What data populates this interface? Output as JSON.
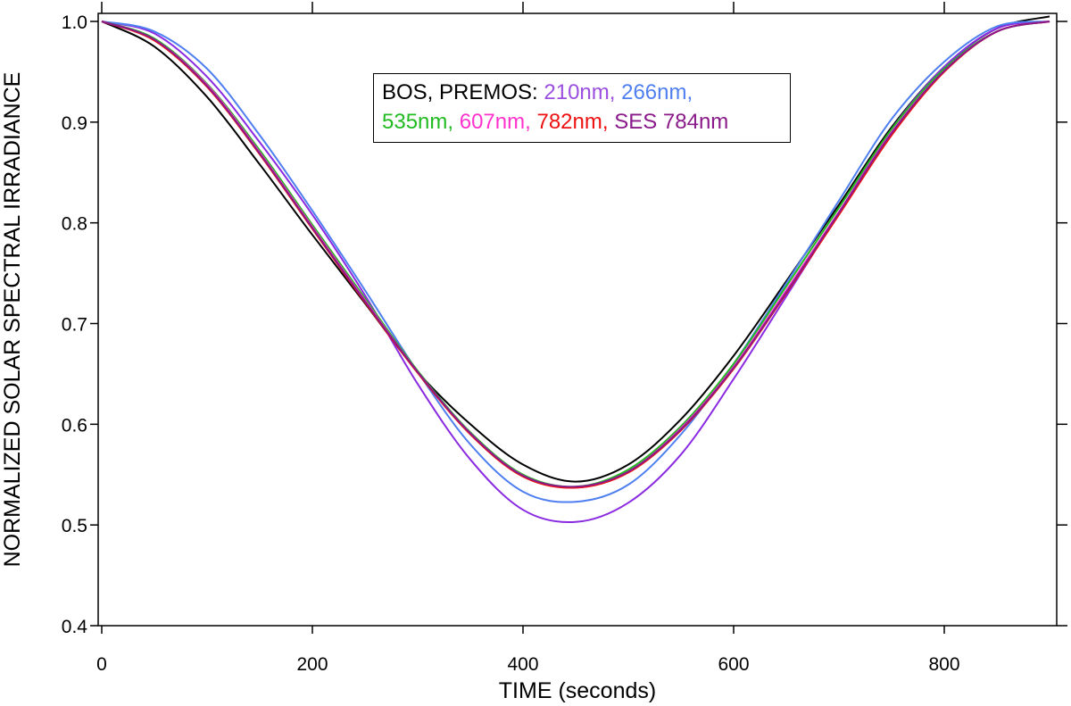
{
  "chart_data": {
    "type": "line",
    "title": "",
    "xlabel": "TIME (seconds)",
    "ylabel": "NORMALIZED SOLAR SPECTRAL IRRADIANCE",
    "xlim": [
      0,
      900
    ],
    "ylim": [
      0.4,
      1.0
    ],
    "xticks": [
      0,
      200,
      400,
      600,
      800
    ],
    "yticks": [
      0.4,
      0.5,
      0.6,
      0.7,
      0.8,
      0.9,
      1.0
    ],
    "xtick_labels": [
      "0",
      "200",
      "400",
      "600",
      "800"
    ],
    "ytick_labels": [
      "0.4",
      "0.5",
      "0.6",
      "0.7",
      "0.8",
      "0.9",
      "1.0"
    ],
    "grid": false,
    "legend_position": "top-center",
    "legend": {
      "prefix": "BOS, PREMOS:",
      "entries": [
        {
          "label": "210nm,",
          "color": "#9b4fe0"
        },
        {
          "label": "266nm,",
          "color": "#4f7ff0"
        },
        {
          "label": "535nm,",
          "color": "#22bb22"
        },
        {
          "label": "607nm,",
          "color": "#ff33cc"
        },
        {
          "label": "782nm,",
          "color": "#ee1111"
        },
        {
          "label": "SES 784nm",
          "color": "#8a1a8a"
        }
      ]
    },
    "x": [
      0,
      50,
      100,
      150,
      200,
      250,
      300,
      350,
      400,
      450,
      500,
      550,
      600,
      650,
      700,
      750,
      800,
      850,
      900
    ],
    "series": [
      {
        "name": "BOS",
        "color": "#000000",
        "values": [
          1.0,
          0.975,
          0.925,
          0.858,
          0.788,
          0.72,
          0.652,
          0.6,
          0.56,
          0.543,
          0.56,
          0.605,
          0.668,
          0.742,
          0.818,
          0.895,
          0.955,
          0.993,
          1.005
        ]
      },
      {
        "name": "PREMOS 210nm",
        "color": "#8a2be2",
        "values": [
          1.0,
          0.988,
          0.945,
          0.88,
          0.808,
          0.728,
          0.64,
          0.565,
          0.515,
          0.503,
          0.522,
          0.57,
          0.645,
          0.727,
          0.81,
          0.893,
          0.955,
          0.993,
          1.0
        ]
      },
      {
        "name": "PREMOS 266nm",
        "color": "#4f7ff0",
        "values": [
          1.0,
          0.99,
          0.953,
          0.887,
          0.812,
          0.733,
          0.652,
          0.58,
          0.533,
          0.523,
          0.54,
          0.59,
          0.66,
          0.74,
          0.822,
          0.903,
          0.96,
          0.995,
          1.0
        ]
      },
      {
        "name": "PREMOS 535nm",
        "color": "#22bb22",
        "values": [
          1.0,
          0.983,
          0.938,
          0.872,
          0.798,
          0.725,
          0.653,
          0.592,
          0.55,
          0.538,
          0.555,
          0.598,
          0.66,
          0.737,
          0.815,
          0.893,
          0.953,
          0.99,
          1.0
        ]
      },
      {
        "name": "PREMOS 607nm",
        "color": "#ff33cc",
        "values": [
          1.0,
          0.982,
          0.937,
          0.87,
          0.796,
          0.723,
          0.652,
          0.591,
          0.549,
          0.537,
          0.553,
          0.596,
          0.657,
          0.733,
          0.811,
          0.89,
          0.951,
          0.99,
          1.0
        ]
      },
      {
        "name": "PREMOS 782nm",
        "color": "#ee1111",
        "values": [
          1.0,
          0.981,
          0.935,
          0.868,
          0.794,
          0.721,
          0.651,
          0.59,
          0.548,
          0.537,
          0.552,
          0.594,
          0.655,
          0.73,
          0.808,
          0.887,
          0.95,
          0.99,
          1.0
        ]
      },
      {
        "name": "SES 784nm",
        "color": "#8a1a8a",
        "values": [
          1.0,
          0.982,
          0.936,
          0.869,
          0.795,
          0.722,
          0.652,
          0.591,
          0.549,
          0.538,
          0.553,
          0.595,
          0.656,
          0.731,
          0.81,
          0.889,
          0.951,
          0.99,
          1.0
        ]
      }
    ]
  }
}
